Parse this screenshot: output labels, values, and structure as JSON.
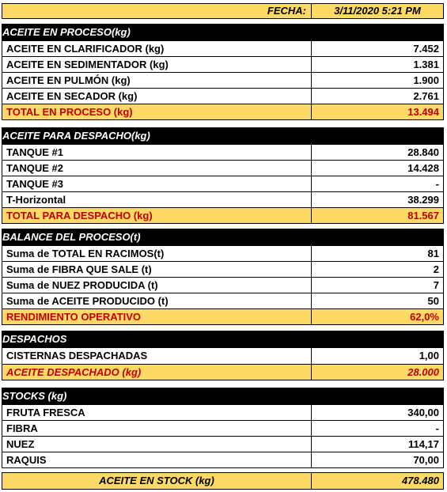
{
  "fecha": {
    "label": "FECHA:",
    "value": "3/11/2020 5:21 PM"
  },
  "proceso": {
    "title": "ACEITE EN PROCESO(kg)",
    "rows": [
      {
        "label": "ACEITE EN CLARIFICADOR (kg)",
        "value": "7.452"
      },
      {
        "label": "ACEITE EN SEDIMENTADOR (kg)",
        "value": "1.381"
      },
      {
        "label": "ACEITE EN PULMÓN (kg)",
        "value": "1.900"
      },
      {
        "label": "ACEITE EN SECADOR (kg)",
        "value": "2.761"
      }
    ],
    "total": {
      "label": "TOTAL EN PROCESO (kg)",
      "value": "13.494"
    }
  },
  "despacho": {
    "title": "ACEITE PARA DESPACHO(kg)",
    "rows": [
      {
        "label": "TANQUE  #1",
        "value": "28.840"
      },
      {
        "label": "TANQUE  #2",
        "value": "14.428"
      },
      {
        "label": "TANQUE  #3",
        "value": "-"
      },
      {
        "label": "T-Horizontal",
        "value": "38.299"
      }
    ],
    "total": {
      "label": "TOTAL PARA DESPACHO (kg)",
      "value": "81.567"
    }
  },
  "balance": {
    "title": "BALANCE DEL PROCESO(t)",
    "rows": [
      {
        "label": "Suma de TOTAL EN RACIMOS(t)",
        "value": "81"
      },
      {
        "label": "Suma de FIBRA QUE SALE (t)",
        "value": "2"
      },
      {
        "label": "Suma de NUEZ PRODUCIDA (t)",
        "value": "7"
      },
      {
        "label": "Suma de ACEITE PRODUCIDO (t)",
        "value": "50"
      }
    ],
    "total": {
      "label": "RENDIMIENTO OPERATIVO",
      "value": "62,0%"
    }
  },
  "despachos": {
    "title": "DESPACHOS",
    "rows": [
      {
        "label": "CISTERNAS DESPACHADAS",
        "value": "1,00"
      }
    ],
    "total": {
      "label": "ACEITE DESPACHADO (kg)",
      "value": "28.000"
    }
  },
  "stocks": {
    "title": "STOCKS (kg)",
    "rows": [
      {
        "label": "FRUTA FRESCA",
        "value": "340,00"
      },
      {
        "label": "FIBRA",
        "value": "-"
      },
      {
        "label": "NUEZ",
        "value": "114,17"
      },
      {
        "label": "RAQUIS",
        "value": "70,00"
      }
    ]
  },
  "stock_total": {
    "label": "ACEITE EN STOCK (kg)",
    "value": "478.480"
  },
  "colors": {
    "highlight": "#fdd966",
    "total_text": "#c00000",
    "header_bg": "#000000"
  }
}
